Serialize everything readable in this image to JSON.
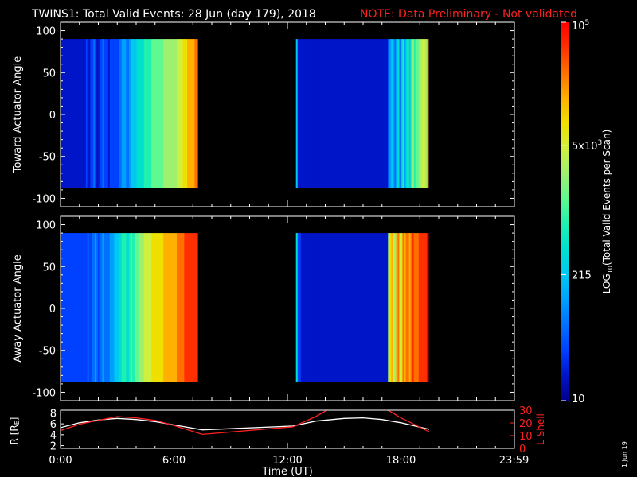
{
  "header": {
    "title": "TWINS1: Total Valid Events: 28 Jun (day 179), 2018",
    "note": "NOTE: Data Preliminary - Not validated"
  },
  "side_date": "1 Jun 19",
  "colors": {
    "background": "#000000",
    "foreground": "#ffffff",
    "note": "#ff2020",
    "lshell": "#ff2020"
  },
  "chart_data": [
    {
      "type": "heatmap",
      "ylabel": "Toward Actuator Angle",
      "ylim": [
        -110,
        110
      ],
      "yticks": [
        100,
        50,
        0,
        -50,
        -100
      ],
      "xlim": [
        0,
        24
      ],
      "data_angle_range": [
        -88,
        90
      ],
      "segments": [
        {
          "start": 0.0,
          "end": 7.25,
          "columns": [
            1,
            1,
            1,
            1,
            1,
            1,
            1,
            1,
            1,
            1,
            1,
            1,
            1,
            1,
            1,
            1,
            1,
            2,
            1,
            1,
            2,
            2,
            3,
            2,
            1,
            1,
            2,
            2,
            3,
            2,
            2,
            2,
            1,
            2,
            2,
            2,
            2,
            2,
            2,
            3,
            3,
            4,
            4,
            4,
            3,
            3,
            4,
            5,
            5,
            5,
            5,
            6,
            6,
            6,
            6,
            6,
            7,
            7,
            7,
            7,
            7,
            8,
            8,
            8,
            8,
            8,
            8,
            8,
            8,
            9,
            9,
            9,
            9,
            9,
            9,
            9,
            9,
            9,
            10,
            10,
            10,
            10,
            11,
            11,
            11,
            12,
            12,
            12,
            12,
            12,
            13,
            13
          ]
        },
        {
          "start": 12.45,
          "end": 19.45,
          "columns": [
            5,
            1,
            1,
            1,
            1,
            1,
            1,
            1,
            1,
            1,
            1,
            1,
            1,
            1,
            1,
            1,
            1,
            1,
            1,
            1,
            1,
            1,
            1,
            1,
            1,
            1,
            1,
            1,
            1,
            1,
            1,
            1,
            1,
            1,
            1,
            1,
            1,
            1,
            1,
            1,
            1,
            1,
            1,
            1,
            1,
            1,
            1,
            1,
            1,
            1,
            1,
            1,
            1,
            1,
            1,
            1,
            1,
            3,
            4,
            5,
            4,
            3,
            5,
            6,
            3,
            5,
            7,
            4,
            6,
            7,
            5,
            7,
            9,
            7,
            8,
            8,
            9,
            9,
            10,
            10,
            9,
            12
          ]
        }
      ]
    },
    {
      "type": "heatmap",
      "ylabel": "Away Actuator Angle",
      "ylim": [
        -110,
        110
      ],
      "yticks": [
        100,
        50,
        0,
        -50,
        -100
      ],
      "xlim": [
        0,
        24
      ],
      "data_angle_range": [
        -88,
        90
      ],
      "segments": [
        {
          "start": 0.0,
          "end": 7.25,
          "columns": [
            2,
            2,
            2,
            2,
            2,
            2,
            2,
            2,
            2,
            2,
            2,
            2,
            2,
            2,
            2,
            2,
            2,
            2,
            3,
            2,
            2,
            3,
            3,
            4,
            3,
            2,
            3,
            3,
            4,
            3,
            3,
            3,
            3,
            4,
            4,
            4,
            5,
            5,
            5,
            6,
            6,
            7,
            7,
            7,
            6,
            6,
            7,
            8,
            7,
            7,
            8,
            8,
            8,
            9,
            9,
            9,
            10,
            10,
            10,
            10,
            10,
            11,
            11,
            11,
            11,
            11,
            11,
            11,
            11,
            12,
            12,
            12,
            12,
            12,
            12,
            12,
            12,
            12,
            13,
            13,
            13,
            13,
            13,
            14,
            14,
            14,
            14,
            14,
            14,
            14,
            14,
            14
          ]
        },
        {
          "start": 12.45,
          "end": 19.45,
          "columns": [
            6,
            2,
            2,
            1,
            1,
            1,
            1,
            1,
            1,
            1,
            1,
            1,
            1,
            1,
            1,
            1,
            1,
            1,
            1,
            1,
            1,
            1,
            1,
            1,
            1,
            1,
            1,
            1,
            1,
            1,
            1,
            1,
            1,
            1,
            1,
            1,
            1,
            1,
            1,
            1,
            1,
            1,
            1,
            1,
            1,
            1,
            1,
            1,
            1,
            1,
            1,
            1,
            1,
            1,
            1,
            1,
            1,
            9,
            11,
            12,
            10,
            9,
            12,
            13,
            10,
            11,
            13,
            12,
            13,
            13,
            12,
            13,
            14,
            13,
            13,
            13,
            14,
            14,
            14,
            14,
            14,
            15
          ]
        }
      ]
    },
    {
      "type": "line",
      "xlabel": "Time (UT)",
      "xticks": [
        "0:00",
        "6:00",
        "12:00",
        "18:00",
        "23:59"
      ],
      "xtick_values": [
        0,
        6,
        12,
        18,
        23.98
      ],
      "xlim": [
        0,
        24
      ],
      "ylabel_left": "R [R",
      "ylabel_left_sub": "E",
      "ylabel_left_end": "]",
      "ylim_left": [
        1.5,
        8.5
      ],
      "yticks_left": [
        8,
        6,
        4,
        2
      ],
      "ylabel_right": "L Shell",
      "ylim_right": [
        0,
        30
      ],
      "yticks_right": [
        30,
        20,
        10,
        0
      ],
      "series": [
        {
          "axis": "left",
          "color": "#ffffff",
          "x": [
            0,
            1,
            2,
            3,
            4,
            5,
            6,
            7.5,
            12.3,
            13.5,
            15,
            16,
            17,
            18,
            19.5
          ],
          "y": [
            5.3,
            6.2,
            6.7,
            7.0,
            6.8,
            6.4,
            5.8,
            4.9,
            5.6,
            6.5,
            7.0,
            7.1,
            6.8,
            6.2,
            5.0
          ]
        },
        {
          "axis": "right",
          "color": "#ff2020",
          "x": [
            0,
            1,
            2,
            3,
            4,
            5,
            6,
            7.5,
            12.3,
            13.5,
            14.2,
            17.2,
            18,
            19.5
          ],
          "y": [
            14,
            19,
            22,
            25,
            24,
            22,
            18,
            11,
            17,
            25,
            31,
            31,
            24,
            13
          ]
        }
      ]
    }
  ],
  "colorbar": {
    "label": "LOG",
    "label_sub": "10",
    "label_rest": "(Total Valid Events per Scan)",
    "min": 10,
    "max": 100000,
    "tick_labels": [
      {
        "value": 100000,
        "text": "10",
        "sup": "5"
      },
      {
        "value": 5000,
        "text": "5x10",
        "sup": "3"
      },
      {
        "value": 215,
        "text": "215",
        "sup": ""
      },
      {
        "value": 10,
        "text": "10",
        "sup": ""
      }
    ],
    "palette": [
      "#00008c",
      "#0014c8",
      "#0040ff",
      "#0070ff",
      "#00a0ff",
      "#00c8f0",
      "#00e0d0",
      "#20f0b0",
      "#60f890",
      "#a0f070",
      "#d0f040",
      "#f0e000",
      "#ffb000",
      "#ff7000",
      "#ff3000",
      "#ff0000"
    ]
  }
}
